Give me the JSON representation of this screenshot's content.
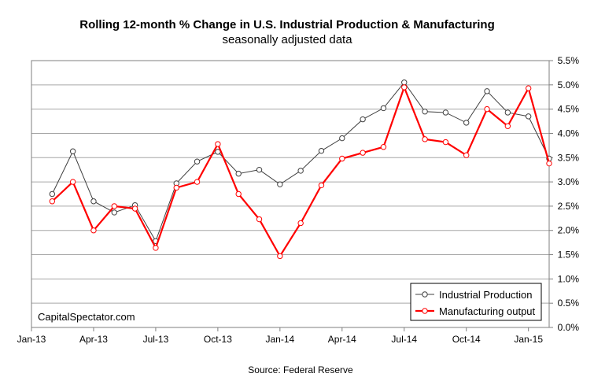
{
  "chart_data": {
    "type": "line",
    "title": "Rolling 12-month % Change in U.S. Industrial Production & Manufacturing",
    "subtitle": "seasonally adjusted data",
    "source": "Source: Federal Reserve",
    "watermark": "CapitalSpectator.com",
    "x_start": "Jan-13",
    "x_tick_labels": [
      "Jan-13",
      "Apr-13",
      "Jul-13",
      "Oct-13",
      "Jan-14",
      "Apr-14",
      "Jul-14",
      "Oct-14",
      "Jan-15"
    ],
    "ylim": [
      0,
      5.5
    ],
    "y_tick_labels": [
      "0.0%",
      "0.5%",
      "1.0%",
      "1.5%",
      "2.0%",
      "2.5%",
      "3.0%",
      "3.5%",
      "4.0%",
      "4.5%",
      "5.0%",
      "5.5%"
    ],
    "y_axis_position": "right",
    "grid": true,
    "legend_position": "bottom-right",
    "x": [
      "Feb-13",
      "Mar-13",
      "Apr-13",
      "May-13",
      "Jun-13",
      "Jul-13",
      "Aug-13",
      "Sep-13",
      "Oct-13",
      "Nov-13",
      "Dec-13",
      "Jan-14",
      "Feb-14",
      "Mar-14",
      "Apr-14",
      "May-14",
      "Jun-14",
      "Jul-14",
      "Aug-14",
      "Sep-14",
      "Oct-14",
      "Nov-14",
      "Dec-14",
      "Jan-15",
      "Feb-15"
    ],
    "series": [
      {
        "name": "Industrial Production",
        "color": "#404040",
        "values": [
          2.75,
          3.63,
          2.6,
          2.37,
          2.52,
          1.78,
          2.97,
          3.42,
          3.62,
          3.17,
          3.25,
          2.95,
          3.23,
          3.64,
          3.9,
          4.29,
          4.52,
          5.05,
          4.45,
          4.43,
          4.22,
          4.87,
          4.43,
          4.35,
          3.48
        ]
      },
      {
        "name": "Manufacturing output",
        "color": "#ff0000",
        "values": [
          2.6,
          3.0,
          2.0,
          2.5,
          2.45,
          1.64,
          2.88,
          3.0,
          3.78,
          2.75,
          2.23,
          1.47,
          2.15,
          2.93,
          3.48,
          3.6,
          3.72,
          4.95,
          3.88,
          3.82,
          3.55,
          4.5,
          4.15,
          4.93,
          3.38
        ]
      }
    ]
  }
}
